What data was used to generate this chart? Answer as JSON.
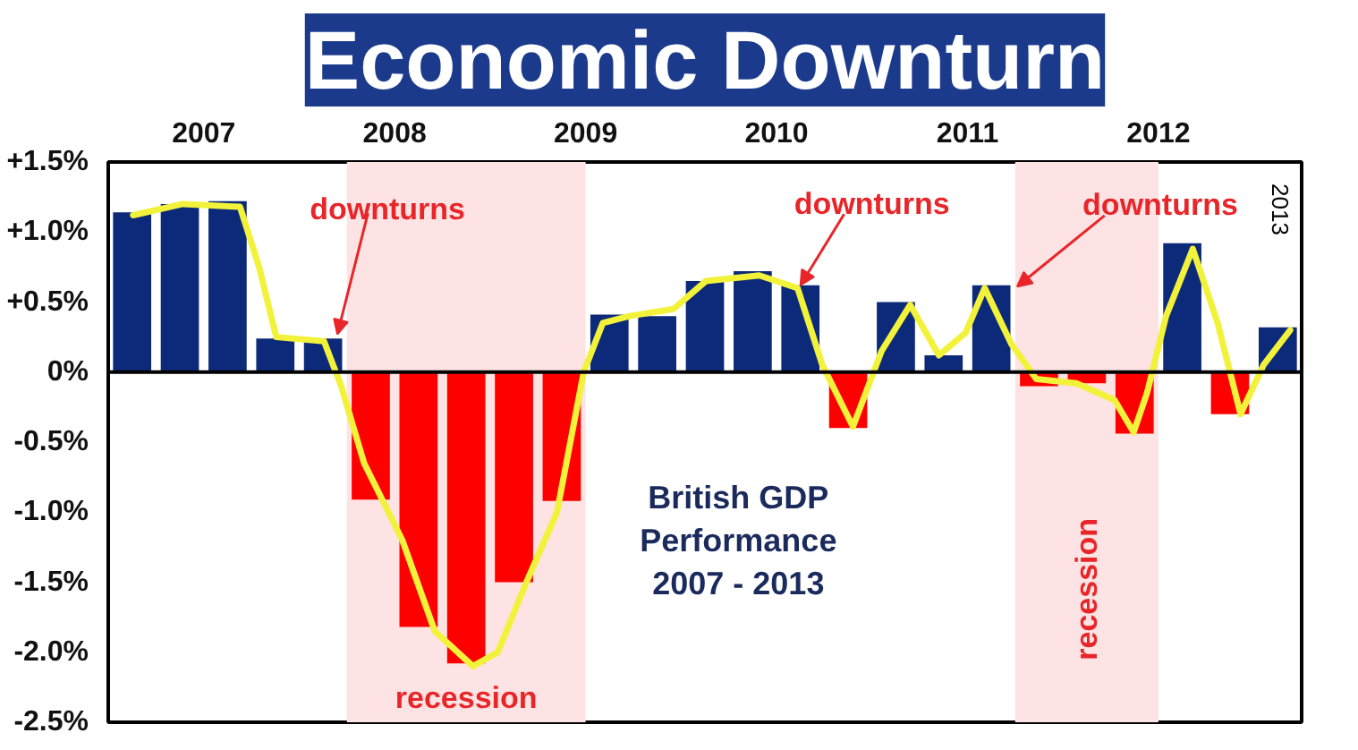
{
  "chart_data": {
    "type": "bar",
    "title": "Economic Downturn",
    "x": [
      2007.125,
      2007.375,
      2007.625,
      2007.875,
      2008.125,
      2008.375,
      2008.625,
      2008.875,
      2009.125,
      2009.375,
      2009.625,
      2009.875,
      2010.125,
      2010.375,
      2010.625,
      2010.875,
      2011.125,
      2011.375,
      2011.625,
      2011.875,
      2012.125,
      2012.375,
      2012.625,
      2012.875,
      2013.125
    ],
    "values": [
      1.14,
      1.2,
      1.22,
      0.24,
      0.24,
      -0.91,
      -1.82,
      -2.08,
      -1.5,
      -0.92,
      0.41,
      0.4,
      0.65,
      0.72,
      0.62,
      -0.4,
      0.5,
      0.12,
      0.62,
      -0.1,
      -0.08,
      -0.44,
      0.92,
      -0.3,
      0.32
    ],
    "colors": [
      "#0d2a7a",
      "#0d2a7a",
      "#0d2a7a",
      "#0d2a7a",
      "#0d2a7a",
      "#ff0000",
      "#ff0000",
      "#ff0000",
      "#ff0000",
      "#ff0000",
      "#0d2a7a",
      "#0d2a7a",
      "#0d2a7a",
      "#0d2a7a",
      "#0d2a7a",
      "#ff0000",
      "#0d2a7a",
      "#0d2a7a",
      "#0d2a7a",
      "#ff0000",
      "#ff0000",
      "#ff0000",
      "#0d2a7a",
      "#ff0000",
      "#0d2a7a"
    ],
    "series": [
      {
        "type": "line",
        "color": "#f2f23a",
        "x": [
          2007.13,
          2007.39,
          2007.69,
          2007.79,
          2007.88,
          2008.13,
          2008.22,
          2008.34,
          2008.54,
          2008.71,
          2008.91,
          2009.04,
          2009.19,
          2009.35,
          2009.49,
          2009.59,
          2009.73,
          2009.96,
          2010.13,
          2010.41,
          2010.61,
          2010.74,
          2010.9,
          2011.05,
          2011.2,
          2011.35,
          2011.49,
          2011.59,
          2011.73,
          2011.86,
          2012.07,
          2012.27,
          2012.37,
          2012.44,
          2012.54,
          2012.68,
          2012.81,
          2012.93,
          2013.05,
          2013.19
        ],
        "values": [
          1.12,
          1.2,
          1.18,
          0.75,
          0.25,
          0.22,
          -0.1,
          -0.65,
          -1.2,
          -1.85,
          -2.1,
          -2.0,
          -1.5,
          -1.0,
          0,
          0.35,
          0.4,
          0.45,
          0.65,
          0.69,
          0.6,
          0.05,
          -0.39,
          0.15,
          0.48,
          0.12,
          0.28,
          0.6,
          0.2,
          -0.05,
          -0.08,
          -0.2,
          -0.43,
          -0.15,
          0.4,
          0.88,
          0.35,
          -0.3,
          0.05,
          0.3
        ]
      }
    ],
    "xlim": [
      2007,
      2013.25
    ],
    "xticks": [
      {
        "value": 2007.5,
        "label": "2007"
      },
      {
        "value": 2008.5,
        "label": "2008"
      },
      {
        "value": 2009.5,
        "label": "2009"
      },
      {
        "value": 2010.5,
        "label": "2010"
      },
      {
        "value": 2011.5,
        "label": "2011"
      },
      {
        "value": 2012.5,
        "label": "2012"
      }
    ],
    "ylim": [
      -2.5,
      1.5
    ],
    "yticks": [
      {
        "value": 1.5,
        "label": "+1.5%"
      },
      {
        "value": 1.0,
        "label": "+1.0%"
      },
      {
        "value": 0.5,
        "label": "+0.5%"
      },
      {
        "value": 0,
        "label": "0%"
      },
      {
        "value": -0.5,
        "label": "-0.5%"
      },
      {
        "value": -1.0,
        "label": "-1.0%"
      },
      {
        "value": -1.5,
        "label": "-1.5%"
      },
      {
        "value": -2.0,
        "label": "-2.0%"
      },
      {
        "value": -2.5,
        "label": "-2.5%"
      }
    ],
    "ref_lines": [
      {
        "axis": "y",
        "value": 0,
        "color": "#000000"
      }
    ],
    "bands": [
      {
        "axis": "x",
        "from": 2008.25,
        "to": 2009.5,
        "label": "recession",
        "color": "#fde3e3"
      },
      {
        "axis": "x",
        "from": 2011.75,
        "to": 2012.5,
        "label": "recession",
        "color": "#fde3e3"
      }
    ],
    "annotations": [
      {
        "text": "downturns",
        "x": 2008.2,
        "y": 0.27
      },
      {
        "text": "downturns",
        "x": 2010.625,
        "y": 0.62
      },
      {
        "text": "downturns",
        "x": 2011.76,
        "y": 0.61
      },
      "2013",
      "British GDP\nPerformance\n2007 - 2013"
    ],
    "grid": false
  }
}
